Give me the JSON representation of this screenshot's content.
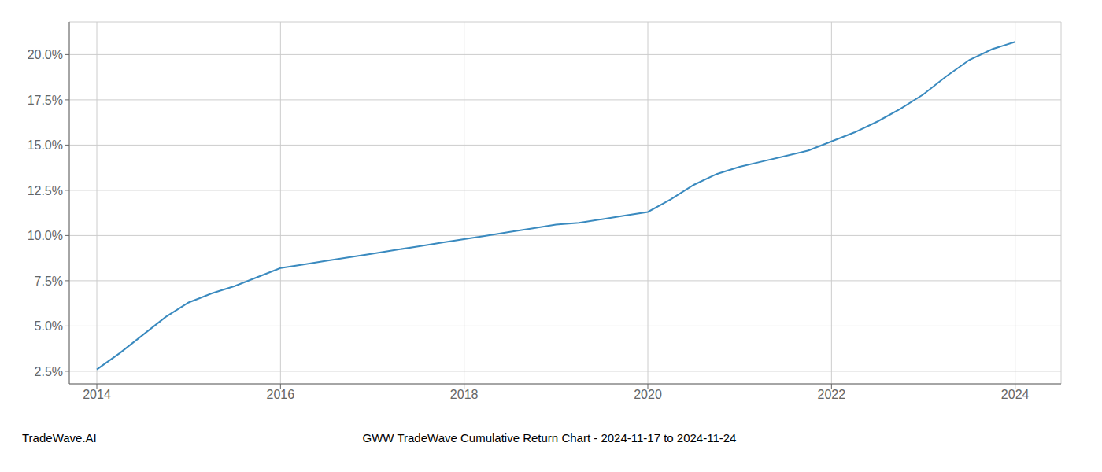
{
  "chart_data": {
    "type": "line",
    "title": "GWW TradeWave Cumulative Return Chart - 2024-11-17 to 2024-11-24",
    "annotations": [
      "TradeWave.AI"
    ],
    "x": [
      2014.0,
      2014.25,
      2014.5,
      2014.75,
      2015.0,
      2015.25,
      2015.5,
      2015.75,
      2016.0,
      2016.25,
      2016.5,
      2016.75,
      2017.0,
      2017.25,
      2017.5,
      2017.75,
      2018.0,
      2018.25,
      2018.5,
      2018.75,
      2019.0,
      2019.25,
      2019.5,
      2019.75,
      2020.0,
      2020.25,
      2020.5,
      2020.75,
      2021.0,
      2021.25,
      2021.5,
      2021.75,
      2022.0,
      2022.25,
      2022.5,
      2022.75,
      2023.0,
      2023.25,
      2023.5,
      2023.75,
      2024.0
    ],
    "values": [
      0.026,
      0.035,
      0.045,
      0.055,
      0.063,
      0.068,
      0.072,
      0.077,
      0.082,
      0.084,
      0.086,
      0.088,
      0.09,
      0.092,
      0.094,
      0.096,
      0.098,
      0.1,
      0.102,
      0.104,
      0.106,
      0.107,
      0.109,
      0.111,
      0.113,
      0.12,
      0.128,
      0.134,
      0.138,
      0.141,
      0.144,
      0.147,
      0.152,
      0.157,
      0.163,
      0.17,
      0.178,
      0.188,
      0.197,
      0.203,
      0.207
    ],
    "color": "#3a8abf",
    "xlim": [
      2013.7,
      2024.5
    ],
    "ylim": [
      0.018,
      0.218
    ],
    "xticks": [
      2014,
      2016,
      2018,
      2020,
      2022,
      2024
    ],
    "yticks": [
      {
        "value": 0.025,
        "label": "2.5%"
      },
      {
        "value": 0.05,
        "label": "5.0%"
      },
      {
        "value": 0.075,
        "label": "7.5%"
      },
      {
        "value": 0.1,
        "label": "10.0%"
      },
      {
        "value": 0.125,
        "label": "12.5%"
      },
      {
        "value": 0.15,
        "label": "15.0%"
      },
      {
        "value": 0.175,
        "label": "17.5%"
      },
      {
        "value": 0.2,
        "label": "20.0%"
      }
    ],
    "grid": true
  }
}
